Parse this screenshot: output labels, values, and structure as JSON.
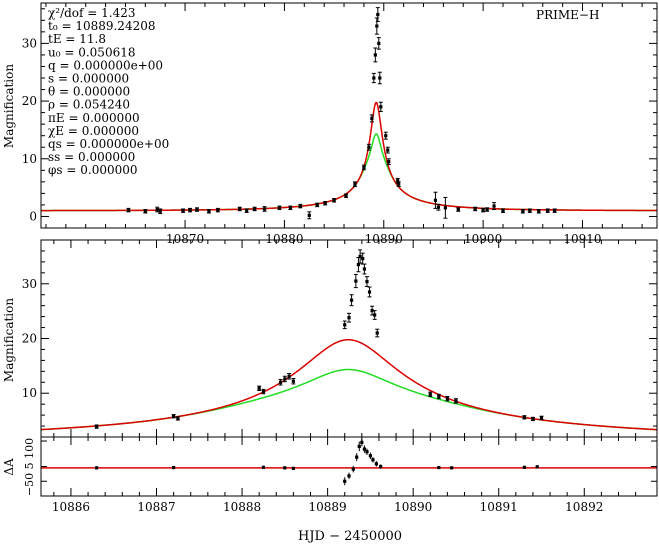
{
  "figure": {
    "xlabel": "HJD − 2450000",
    "colors": {
      "model_red": "#dd0000",
      "model_green": "#22dd22",
      "data": "#000000",
      "axes": "#000000"
    }
  },
  "chart_data": [
    {
      "type": "scatter",
      "panel": "top",
      "title": "PRIME−H",
      "ylabel": "Magnification",
      "xlim": [
        10855.5,
        10917.5
      ],
      "ylim": [
        -2,
        37
      ],
      "xticks": [
        10870,
        10880,
        10890,
        10900,
        10910
      ],
      "yticks": [
        0,
        10,
        20,
        30
      ],
      "params": [
        "χ²/dof = 1.423",
        "t₀ = 10889.24208",
        "tE = 11.8",
        "u₀ = 0.050618",
        "q = 0.000000e+00",
        "s = 0.000000",
        "θ = 0.000000",
        "ρ = 0.054240",
        "πE = 0.000000",
        "χE = 0.000000",
        "qs = 0.000000e+00",
        "ss = 0.000000",
        "φs = 0.000000"
      ],
      "model": {
        "t0": 10889.24208,
        "tE": 11.8,
        "u0": 0.050618,
        "rho": 0.05424
      },
      "series": [
        {
          "name": "",
          "style": "red model",
          "baseline": 1.0
        },
        {
          "name": "",
          "style": "green model",
          "baseline": 1.0
        }
      ],
      "points": [
        [
          10864.3,
          1.1,
          0.3
        ],
        [
          10866.0,
          0.9,
          0.3
        ],
        [
          10867.2,
          1.2,
          0.4
        ],
        [
          10867.5,
          0.9,
          0.4
        ],
        [
          10869.8,
          1.0,
          0.3
        ],
        [
          10870.5,
          1.1,
          0.3
        ],
        [
          10871.2,
          1.2,
          0.3
        ],
        [
          10872.4,
          0.9,
          0.3
        ],
        [
          10873.3,
          1.1,
          0.3
        ],
        [
          10875.5,
          1.3,
          0.3
        ],
        [
          10876.2,
          1.0,
          0.3
        ],
        [
          10877.0,
          1.3,
          0.3
        ],
        [
          10878.0,
          1.3,
          0.4
        ],
        [
          10879.5,
          1.5,
          0.3
        ],
        [
          10880.6,
          1.5,
          0.3
        ],
        [
          10881.6,
          1.8,
          0.3
        ],
        [
          10882.5,
          0.2,
          0.6
        ],
        [
          10883.3,
          2.0,
          0.3
        ],
        [
          10884.1,
          2.3,
          0.3
        ],
        [
          10885.0,
          2.8,
          0.3
        ],
        [
          10886.2,
          3.6,
          0.3
        ],
        [
          10887.1,
          5.6,
          0.4
        ],
        [
          10888.0,
          8.5,
          0.4
        ],
        [
          10888.5,
          12.0,
          0.5
        ],
        [
          10888.8,
          17.0,
          0.6
        ],
        [
          10889.0,
          24.0,
          0.8
        ],
        [
          10889.15,
          28.0,
          1.2
        ],
        [
          10889.3,
          33.0,
          1.4
        ],
        [
          10889.4,
          35.0,
          1.2
        ],
        [
          10889.5,
          30.0,
          1.0
        ],
        [
          10889.6,
          24.0,
          1.0
        ],
        [
          10889.7,
          19.0,
          0.8
        ],
        [
          10890.2,
          14.0,
          0.6
        ],
        [
          10890.4,
          11.5,
          0.5
        ],
        [
          10890.5,
          9.5,
          0.5
        ],
        [
          10891.4,
          6.2,
          0.4
        ],
        [
          10891.5,
          5.6,
          0.4
        ],
        [
          10895.2,
          2.8,
          1.4
        ],
        [
          10895.5,
          1.6,
          0.5
        ],
        [
          10896.2,
          1.5,
          1.8
        ],
        [
          10897.5,
          1.2,
          0.3
        ],
        [
          10899.2,
          1.3,
          0.3
        ],
        [
          10900.0,
          1.1,
          0.3
        ],
        [
          10900.4,
          1.2,
          0.3
        ],
        [
          10901.1,
          1.8,
          0.6
        ],
        [
          10902.0,
          1.0,
          0.3
        ],
        [
          10904.0,
          0.9,
          0.3
        ],
        [
          10904.7,
          1.0,
          0.3
        ],
        [
          10905.6,
          0.9,
          0.3
        ],
        [
          10906.5,
          1.0,
          0.3
        ],
        [
          10907.2,
          1.0,
          0.3
        ]
      ]
    },
    {
      "type": "scatter",
      "panel": "middle",
      "ylabel": "Magnification",
      "xlim": [
        10885.65,
        10892.85
      ],
      "ylim": [
        2,
        38
      ],
      "xticks": [
        10886,
        10887,
        10888,
        10889,
        10890,
        10891,
        10892
      ],
      "yticks": [
        10,
        20,
        30
      ],
      "points": [
        [
          10886.3,
          3.9,
          0.3
        ],
        [
          10887.2,
          5.8,
          0.3
        ],
        [
          10887.25,
          5.4,
          0.3
        ],
        [
          10888.2,
          10.9,
          0.4
        ],
        [
          10888.25,
          10.3,
          0.4
        ],
        [
          10888.45,
          12.0,
          0.5
        ],
        [
          10888.5,
          12.6,
          0.5
        ],
        [
          10888.55,
          13.1,
          0.5
        ],
        [
          10888.6,
          12.2,
          0.5
        ],
        [
          10889.2,
          22.5,
          0.7
        ],
        [
          10889.25,
          23.8,
          0.8
        ],
        [
          10889.28,
          27.0,
          1.0
        ],
        [
          10889.33,
          30.5,
          1.2
        ],
        [
          10889.36,
          33.5,
          1.3
        ],
        [
          10889.38,
          35.0,
          1.2
        ],
        [
          10889.41,
          34.6,
          1.0
        ],
        [
          10889.43,
          32.7,
          0.9
        ],
        [
          10889.46,
          30.4,
          0.9
        ],
        [
          10889.49,
          28.5,
          0.9
        ],
        [
          10889.52,
          25.1,
          0.8
        ],
        [
          10889.55,
          24.3,
          0.8
        ],
        [
          10889.58,
          21.0,
          0.7
        ],
        [
          10890.2,
          9.8,
          0.4
        ],
        [
          10890.3,
          9.4,
          0.4
        ],
        [
          10890.4,
          9.0,
          0.4
        ],
        [
          10890.5,
          8.6,
          0.4
        ],
        [
          10891.3,
          5.6,
          0.3
        ],
        [
          10891.4,
          5.3,
          0.3
        ],
        [
          10891.5,
          5.5,
          0.3
        ]
      ]
    },
    {
      "type": "scatter",
      "panel": "bottom",
      "ylabel": "ΔA",
      "xlim": [
        10885.65,
        10892.85
      ],
      "ylim": [
        -105,
        115
      ],
      "yticks": [
        -50,
        5,
        100
      ],
      "ytick_labels": [
        "−50",
        "5",
        "100"
      ],
      "residual_points": [
        [
          10886.3,
          0,
          3
        ],
        [
          10887.2,
          1,
          3
        ],
        [
          10888.25,
          2,
          4
        ],
        [
          10888.5,
          0,
          4
        ],
        [
          10888.6,
          -2,
          4
        ],
        [
          10889.2,
          -50,
          15
        ],
        [
          10889.25,
          -30,
          12
        ],
        [
          10889.3,
          -5,
          12
        ],
        [
          10889.34,
          40,
          15
        ],
        [
          10889.37,
          80,
          18
        ],
        [
          10889.4,
          95,
          15
        ],
        [
          10889.43,
          70,
          14
        ],
        [
          10889.46,
          60,
          12
        ],
        [
          10889.5,
          45,
          12
        ],
        [
          10889.53,
          30,
          10
        ],
        [
          10889.57,
          15,
          10
        ],
        [
          10889.62,
          5,
          8
        ],
        [
          10890.3,
          1,
          3
        ],
        [
          10890.45,
          0,
          3
        ],
        [
          10891.3,
          2,
          3
        ],
        [
          10891.45,
          4,
          3
        ]
      ]
    }
  ]
}
